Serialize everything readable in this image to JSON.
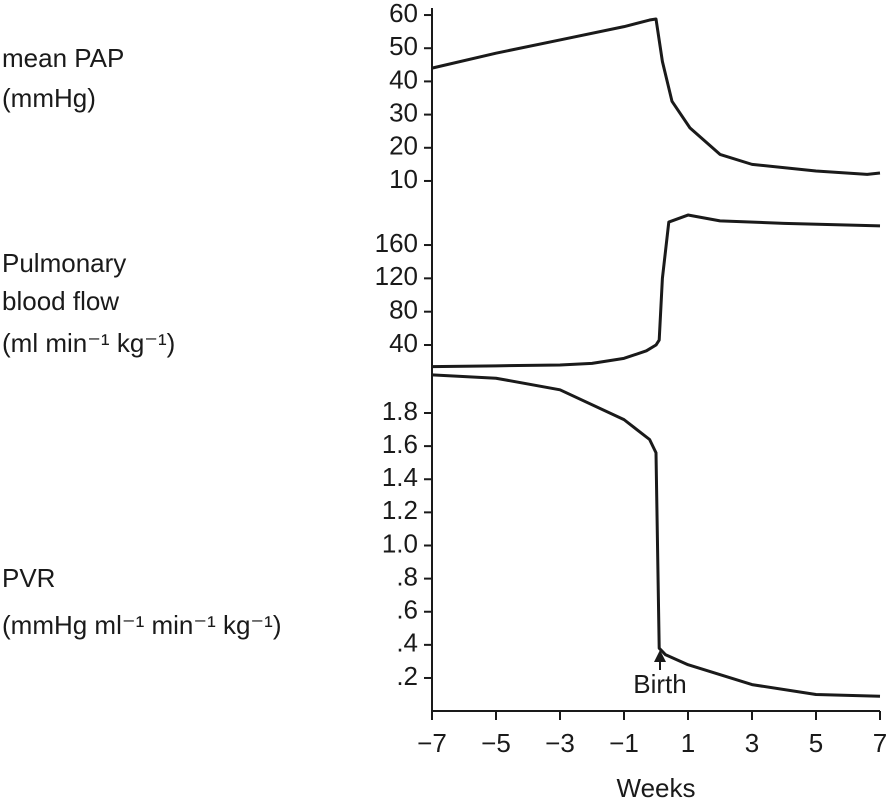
{
  "chart_data": [
    {
      "type": "line",
      "ylabel": [
        "mean PAP",
        "(mmHg)"
      ],
      "color": "#1a1a1a",
      "xlim": [
        -7,
        7
      ],
      "ylim": [
        8,
        62
      ],
      "yticks": [
        10,
        20,
        30,
        40,
        50,
        60
      ],
      "x": [
        -7,
        -5,
        -3,
        -1,
        -0.2,
        0,
        0.2,
        0.5,
        1.06,
        2,
        3,
        5,
        6.6,
        7
      ],
      "values": [
        44,
        48.5,
        52.5,
        56.5,
        58.5,
        58.8,
        46,
        34,
        26,
        18,
        15,
        13,
        12,
        12.4
      ]
    },
    {
      "type": "line",
      "ylabel": [
        "Pulmonary",
        "blood flow",
        "(ml min⁻¹ kg⁻¹)"
      ],
      "color": "#1a1a1a",
      "xlim": [
        -7,
        7
      ],
      "ylim": [
        10,
        200
      ],
      "yticks": [
        40,
        80,
        120,
        160
      ],
      "x": [
        -7,
        -5,
        -3,
        -2,
        -1,
        -0.3,
        0,
        0.1,
        0.2,
        0.4,
        1,
        2,
        4,
        7
      ],
      "values": [
        14,
        15,
        16,
        18,
        24,
        33,
        40,
        46,
        120,
        187.6,
        196,
        189,
        186,
        183
      ]
    },
    {
      "type": "line",
      "ylabel": [
        "PVR",
        "(mmHg ml⁻¹ min⁻¹ kg⁻¹)"
      ],
      "color": "#1a1a1a",
      "xlim": [
        -7,
        7
      ],
      "ylim": [
        0,
        2.05
      ],
      "yticks": [
        {
          "value": 0.2,
          "label": ".2"
        },
        {
          "value": 0.4,
          "label": ".4"
        },
        {
          "value": 0.6,
          "label": ".6"
        },
        {
          "value": 0.8,
          "label": ".8"
        },
        {
          "value": 1,
          "label": "1.0"
        },
        1.2,
        1.4,
        1.6,
        1.8
      ],
      "x": [
        -7,
        -5,
        -3,
        -1,
        -0.2,
        0,
        0.1,
        0.3,
        1,
        3,
        5,
        7
      ],
      "values": [
        2.03,
        2.01,
        1.94,
        1.76,
        1.64,
        1.56,
        0.38,
        0.34,
        0.28,
        0.16,
        0.1,
        0.09
      ],
      "xticks": [
        {
          "value": -7,
          "label": "−7"
        },
        {
          "value": -5,
          "label": "−5"
        },
        {
          "value": -3,
          "label": "−3"
        },
        {
          "value": -1,
          "label": "−1"
        },
        1,
        3,
        5,
        7
      ],
      "xlabel": "Weeks",
      "annotation": "Birth"
    }
  ]
}
